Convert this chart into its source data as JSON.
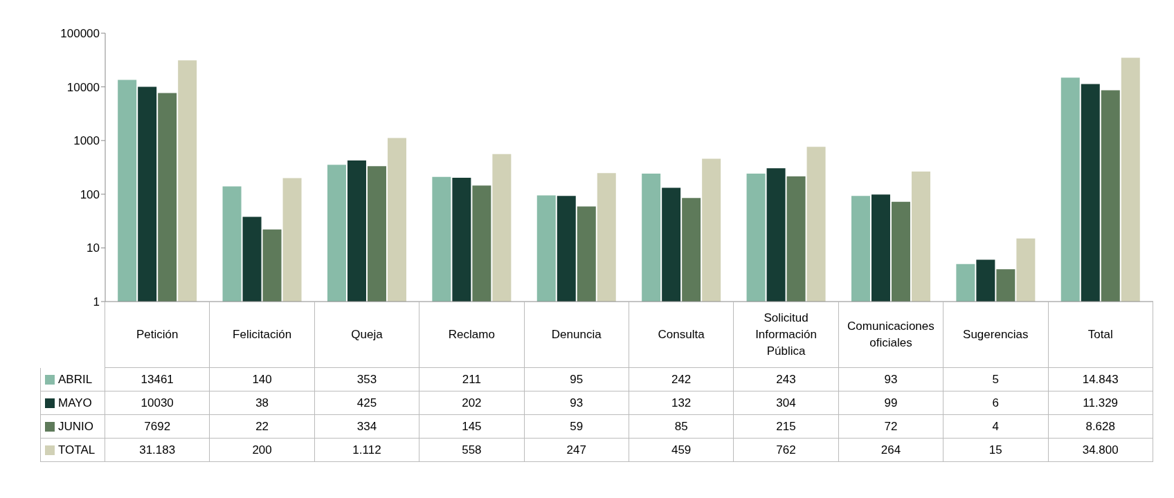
{
  "chart_data": {
    "type": "bar",
    "log": "y",
    "legend": "bottom",
    "ylim": [
      1,
      100000
    ],
    "yticks": [
      1,
      10,
      100,
      1000,
      10000,
      100000
    ],
    "categories": [
      "Petición",
      "Felicitación",
      "Queja",
      "Reclamo",
      "Denuncia",
      "Consulta",
      "Solicitud Información Pública",
      "Comunicaciones oficiales",
      "Sugerencias",
      "Total"
    ],
    "series": [
      {
        "name": "ABRIL",
        "color": "#88bba8",
        "values": [
          13461,
          140,
          353,
          211,
          95,
          242,
          243,
          93,
          5,
          14843
        ],
        "value_labels": [
          "13461",
          "140",
          "353",
          "211",
          "95",
          "242",
          "243",
          "93",
          "5",
          "14.843"
        ]
      },
      {
        "name": "MAYO",
        "color": "#163d35",
        "values": [
          10030,
          38,
          425,
          202,
          93,
          132,
          304,
          99,
          6,
          11329
        ],
        "value_labels": [
          "10030",
          "38",
          "425",
          "202",
          "93",
          "132",
          "304",
          "99",
          "6",
          "11.329"
        ]
      },
      {
        "name": "JUNIO",
        "color": "#5e7a5a",
        "values": [
          7692,
          22,
          334,
          145,
          59,
          85,
          215,
          72,
          4,
          8628
        ],
        "value_labels": [
          "7692",
          "22",
          "334",
          "145",
          "59",
          "85",
          "215",
          "72",
          "4",
          "8.628"
        ]
      },
      {
        "name": "TOTAL",
        "color": "#d1d1b6",
        "values": [
          31183,
          200,
          1112,
          558,
          247,
          459,
          762,
          264,
          15,
          34800
        ],
        "value_labels": [
          "31.183",
          "200",
          "1.112",
          "558",
          "247",
          "459",
          "762",
          "264",
          "15",
          "34.800"
        ]
      }
    ]
  }
}
